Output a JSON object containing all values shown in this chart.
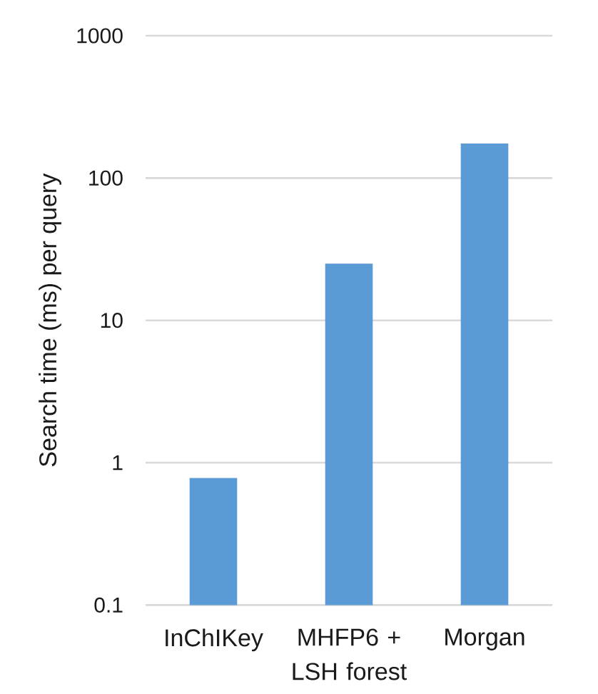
{
  "chart_data": {
    "type": "bar",
    "ylabel": "Search time (ms) per query",
    "categories": [
      "InChIKey",
      "MHFP6 + LSH forest",
      "Morgan"
    ],
    "values": [
      0.78,
      25,
      175
    ],
    "color": "#5b9bd5",
    "log": true,
    "ylim": [
      0.1,
      1000
    ],
    "yticks": [
      0.1,
      1,
      10,
      100,
      1000
    ],
    "grid": "y"
  }
}
